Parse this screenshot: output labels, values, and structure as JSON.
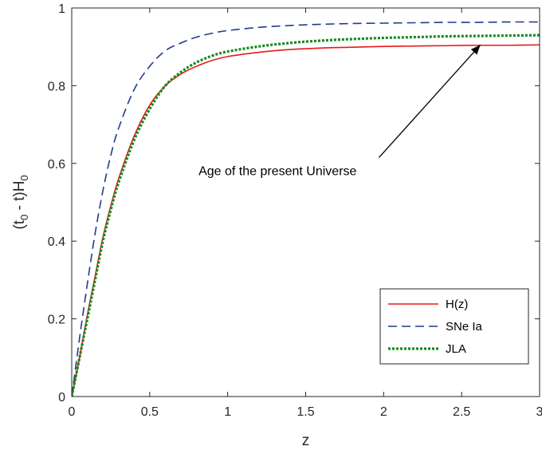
{
  "chart_data": {
    "type": "line",
    "xlabel": "z",
    "ylabel_main": "(t",
    "ylabel_sub0": "0",
    "ylabel_mid": " - t)H",
    "ylabel_sub1": "0",
    "xlim": [
      0,
      3
    ],
    "ylim": [
      0,
      1
    ],
    "x_ticks": [
      0,
      0.5,
      1,
      1.5,
      2,
      2.5,
      3
    ],
    "x_tick_labels": [
      "0",
      "0.5",
      "1",
      "1.5",
      "2",
      "2.5",
      "3"
    ],
    "y_ticks": [
      0,
      0.2,
      0.4,
      0.6,
      0.8,
      1
    ],
    "y_tick_labels": [
      "0",
      "0.2",
      "0.4",
      "0.6",
      "0.8",
      "1"
    ],
    "grid": false,
    "legend_position": "bottom-right",
    "x": [
      0,
      0.05,
      0.1,
      0.15,
      0.2,
      0.25,
      0.3,
      0.4,
      0.5,
      0.6,
      0.7,
      0.8,
      0.9,
      1.0,
      1.2,
      1.4,
      1.6,
      1.8,
      2.0,
      2.2,
      2.4,
      2.6,
      2.8,
      3.0
    ],
    "series": [
      {
        "name": "H(z)",
        "color": "#e41a1c",
        "dash": "solid",
        "values": [
          0,
          0.1,
          0.21,
          0.31,
          0.41,
          0.49,
          0.56,
          0.67,
          0.75,
          0.8,
          0.83,
          0.85,
          0.865,
          0.875,
          0.886,
          0.893,
          0.897,
          0.899,
          0.901,
          0.902,
          0.903,
          0.904,
          0.904,
          0.905
        ]
      },
      {
        "name": "SNe Ia",
        "color": "#1f3c8f",
        "dash": "dashed",
        "values": [
          0,
          0.15,
          0.29,
          0.42,
          0.53,
          0.62,
          0.69,
          0.79,
          0.85,
          0.89,
          0.91,
          0.925,
          0.935,
          0.942,
          0.95,
          0.955,
          0.958,
          0.96,
          0.961,
          0.962,
          0.963,
          0.963,
          0.964,
          0.964
        ]
      },
      {
        "name": "JLA",
        "color": "#138a1e",
        "dash": "dotted",
        "values": [
          0,
          0.1,
          0.2,
          0.3,
          0.4,
          0.48,
          0.55,
          0.66,
          0.74,
          0.8,
          0.835,
          0.86,
          0.877,
          0.888,
          0.901,
          0.91,
          0.916,
          0.92,
          0.923,
          0.925,
          0.927,
          0.928,
          0.929,
          0.93
        ]
      }
    ],
    "annotation": {
      "text": "Age of the present Universe",
      "text_anchor": [
        1.32,
        0.57
      ],
      "arrow_from": [
        1.97,
        0.615
      ],
      "arrow_to": [
        2.62,
        0.905
      ]
    }
  }
}
